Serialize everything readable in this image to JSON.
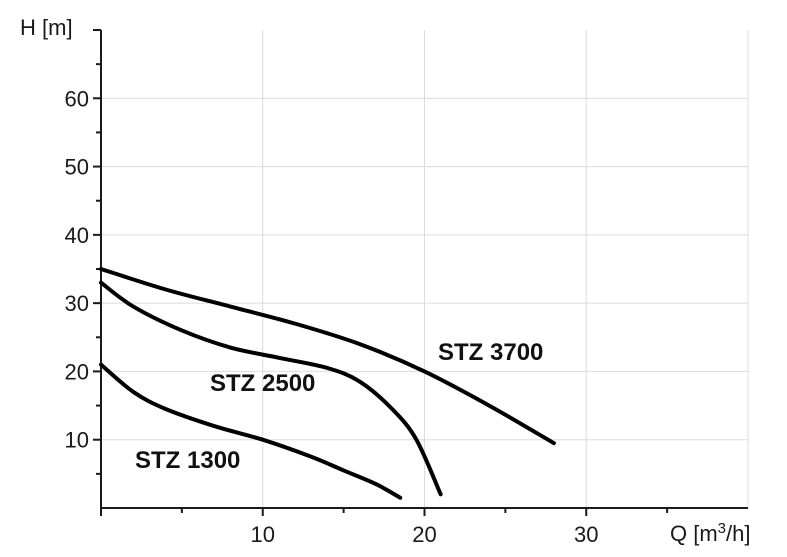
{
  "chart_data": {
    "type": "line",
    "title": "",
    "ylabel": "H [m]",
    "xlabel_main": "Q [m",
    "xlabel_sup": "3",
    "xlabel_tail": "/h]",
    "xlim": [
      0,
      40
    ],
    "ylim": [
      0,
      70
    ],
    "x_ticks": [
      10,
      20,
      30
    ],
    "y_ticks": [
      10,
      20,
      30,
      40,
      50,
      60
    ],
    "grid": true,
    "series": [
      {
        "name": "STZ 3700",
        "x": [
          0,
          4,
          8,
          12,
          16,
          20,
          24,
          28
        ],
        "y": [
          35,
          32,
          29.5,
          27,
          24,
          20,
          15,
          9.5
        ]
      },
      {
        "name": "STZ 2500",
        "x": [
          0,
          2,
          5,
          8,
          11,
          14,
          16,
          18,
          19.5,
          21
        ],
        "y": [
          33,
          29.5,
          26,
          23.5,
          22,
          20.5,
          18.5,
          14.5,
          10,
          2
        ]
      },
      {
        "name": "STZ 1300",
        "x": [
          0,
          2,
          4,
          7,
          10,
          13,
          15,
          17,
          18.5
        ],
        "y": [
          21,
          17,
          14.5,
          12,
          10,
          7.5,
          5.5,
          3.5,
          1.5
        ]
      }
    ]
  }
}
